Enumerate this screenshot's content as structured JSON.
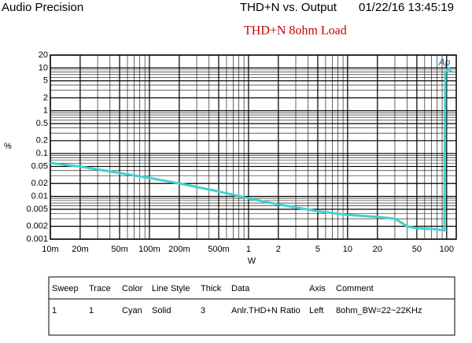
{
  "chart_data": {
    "type": "line",
    "brand": "Audio Precision",
    "header": "THD+N vs. Output",
    "timestamp": "01/22/16 13:45:19",
    "title": "THD+N 8ohm Load",
    "logo": "Ap",
    "x_label": "W",
    "y_label": "%",
    "x": [
      0.01,
      0.02,
      0.05,
      0.1,
      0.2,
      0.5,
      1,
      2,
      5,
      10,
      20,
      30,
      40,
      50,
      80,
      95,
      97,
      105,
      110
    ],
    "values": [
      0.06,
      0.05,
      0.035,
      0.027,
      0.02,
      0.013,
      0.009,
      0.0065,
      0.0045,
      0.0037,
      0.0033,
      0.003,
      0.002,
      0.0018,
      0.0017,
      0.0016,
      8,
      10,
      8
    ],
    "color": "#40d0d0",
    "xlim": [
      0.01,
      125
    ],
    "ylim": [
      0.001,
      20
    ],
    "log_x": true,
    "log_y": true,
    "grid": true,
    "xticks": [
      {
        "value": 0.01,
        "label": "10m"
      },
      {
        "value": 0.02,
        "label": "20m"
      },
      {
        "value": 0.05,
        "label": "50m"
      },
      {
        "value": 0.1,
        "label": "100m"
      },
      {
        "value": 0.2,
        "label": "200m"
      },
      {
        "value": 0.5,
        "label": "500m"
      },
      1,
      2,
      5,
      10,
      20,
      50,
      100
    ],
    "yticks": [
      20,
      10,
      5,
      2,
      1,
      0.5,
      0.2,
      0.1,
      0.05,
      0.02,
      0.01,
      0.005,
      0.002,
      0.001
    ]
  },
  "table": {
    "columns": [
      "Sweep",
      "Trace",
      "Color",
      "Line Style",
      "Thick",
      "Data",
      "Axis",
      "Comment"
    ],
    "rows": [
      [
        "1",
        "1",
        "Cyan",
        "Solid",
        "3",
        "Anlr.THD+N Ratio",
        "Left",
        "8ohm_BW=22~22KHz"
      ]
    ]
  }
}
